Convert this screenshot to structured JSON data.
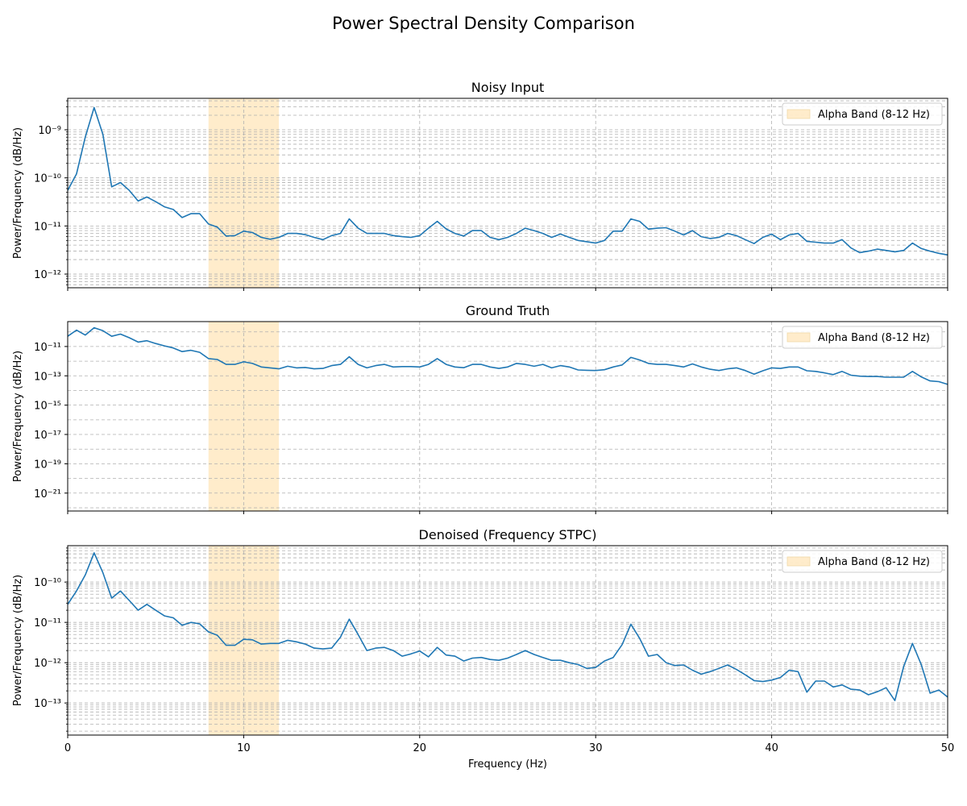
{
  "title": "Power Spectral Density Comparison",
  "colors": {
    "line": "#1f77b4",
    "band": "#ffe4b5",
    "band_alpha": 0.7,
    "grid": "#b0b0b0"
  },
  "chart_data": [
    {
      "type": "line",
      "title": "Noisy Input",
      "xlabel": "",
      "ylabel": "Power/Frequency (dB/Hz)",
      "xlim": [
        0,
        50
      ],
      "ylim": [
        5.2e-13,
        4.5e-09
      ],
      "yscale": "log",
      "xticks": [
        0,
        10,
        20,
        30,
        40,
        50
      ],
      "show_xticklabels": false,
      "yticks": [
        1e-12,
        1e-11,
        1e-10,
        1e-09
      ],
      "ytick_labels": [
        "10^-12",
        "10^-11",
        "10^-10",
        "10^-9"
      ],
      "grid": true,
      "minor_grid": true,
      "legend": {
        "label": "Alpha Band (8-12 Hz)",
        "position": "top-right"
      },
      "shaded_band": [
        8,
        12
      ],
      "series": [
        {
          "x": [
            0,
            0.5,
            1,
            1.5,
            2,
            2.5,
            3,
            3.5,
            4,
            4.5,
            5,
            5.5,
            6,
            6.5,
            7,
            7.5,
            8,
            8.5,
            9,
            9.5,
            10,
            10.5,
            11,
            11.5,
            12,
            12.5,
            13,
            13.5,
            14,
            14.5,
            15,
            15.5,
            16,
            16.5,
            17,
            17.5,
            18,
            18.5,
            19,
            19.5,
            20,
            20.5,
            21,
            21.5,
            22,
            22.5,
            23,
            23.5,
            24,
            24.5,
            25,
            25.5,
            26,
            26.5,
            27,
            27.5,
            28,
            28.5,
            29,
            29.5,
            30,
            30.5,
            31,
            31.5,
            32,
            32.5,
            33,
            33.5,
            34,
            34.5,
            35,
            35.5,
            36,
            36.5,
            37,
            37.5,
            38,
            38.5,
            39,
            39.5,
            40,
            40.5,
            41,
            41.5,
            42,
            42.5,
            43,
            43.5,
            44,
            44.5,
            45,
            45.5,
            46,
            46.5,
            47,
            47.5,
            48,
            48.5,
            49,
            49.5,
            50
          ],
          "values": [
            5.5e-11,
            1.2e-10,
            7e-10,
            2.9e-09,
            8e-10,
            6.5e-11,
            8e-11,
            5.5e-11,
            3.3e-11,
            4e-11,
            3.2e-11,
            2.5e-11,
            2.2e-11,
            1.5e-11,
            1.8e-11,
            1.8e-11,
            1.1e-11,
            9.5e-12,
            6.2e-12,
            6.3e-12,
            7.8e-12,
            7.3e-12,
            5.8e-12,
            5.3e-12,
            5.8e-12,
            7e-12,
            7e-12,
            6.6e-12,
            5.8e-12,
            5.2e-12,
            6.3e-12,
            7e-12,
            1.4e-11,
            9e-12,
            7e-12,
            7e-12,
            7e-12,
            6.3e-12,
            6e-12,
            5.8e-12,
            6.3e-12,
            9e-12,
            1.25e-11,
            8.7e-12,
            7e-12,
            6.2e-12,
            8e-12,
            8e-12,
            5.8e-12,
            5.2e-12,
            5.8e-12,
            7e-12,
            9e-12,
            8e-12,
            7e-12,
            5.8e-12,
            6.8e-12,
            5.8e-12,
            5e-12,
            4.7e-12,
            4.4e-12,
            5e-12,
            7.8e-12,
            7.8e-12,
            1.4e-11,
            1.25e-11,
            8.6e-12,
            9e-12,
            9.2e-12,
            7.8e-12,
            6.5e-12,
            8e-12,
            6e-12,
            5.5e-12,
            5.8e-12,
            7e-12,
            6.3e-12,
            5.2e-12,
            4.3e-12,
            5.8e-12,
            6.8e-12,
            5.2e-12,
            6.5e-12,
            7e-12,
            4.8e-12,
            4.6e-12,
            4.4e-12,
            4.4e-12,
            5.2e-12,
            3.5e-12,
            2.8e-12,
            3e-12,
            3.3e-12,
            3.1e-12,
            2.9e-12,
            3.1e-12,
            4.4e-12,
            3.4e-12,
            3e-12,
            2.7e-12,
            2.5e-12
          ]
        }
      ]
    },
    {
      "type": "line",
      "title": "Ground Truth",
      "xlabel": "",
      "ylabel": "Power/Frequency (dB/Hz)",
      "xlim": [
        0,
        50
      ],
      "ylim": [
        6e-23,
        5e-10
      ],
      "yscale": "log",
      "xticks": [
        0,
        10,
        20,
        30,
        40,
        50
      ],
      "show_xticklabels": false,
      "yticks": [
        1e-21,
        1e-19,
        1e-17,
        1e-15,
        1e-13,
        1e-11
      ],
      "ytick_labels": [
        "10^-21",
        "10^-19",
        "10^-17",
        "10^-15",
        "10^-13",
        "10^-11"
      ],
      "grid": true,
      "minor_grid": false,
      "legend": {
        "label": "Alpha Band (8-12 Hz)",
        "position": "top-right"
      },
      "shaded_band": [
        8,
        12
      ],
      "series": [
        {
          "x": [
            0,
            0.5,
            1,
            1.5,
            2,
            2.5,
            3,
            3.5,
            4,
            4.5,
            5,
            5.5,
            6,
            6.5,
            7,
            7.5,
            8,
            8.5,
            9,
            9.5,
            10,
            10.5,
            11,
            11.5,
            12,
            12.5,
            13,
            13.5,
            14,
            14.5,
            15,
            15.5,
            16,
            16.5,
            17,
            17.5,
            18,
            18.5,
            19,
            19.5,
            20,
            20.5,
            21,
            21.5,
            22,
            22.5,
            23,
            23.5,
            24,
            24.5,
            25,
            25.5,
            26,
            26.5,
            27,
            27.5,
            28,
            28.5,
            29,
            29.5,
            30,
            30.5,
            31,
            31.5,
            32,
            32.5,
            33,
            33.5,
            34,
            34.5,
            35,
            35.5,
            36,
            36.5,
            37,
            37.5,
            38,
            38.5,
            39,
            39.5,
            40,
            40.5,
            41,
            41.5,
            42,
            42.5,
            43,
            43.5,
            44,
            44.5,
            45,
            45.5,
            46,
            46.5,
            47,
            47.5,
            48,
            48.5,
            49,
            49.5,
            50
          ],
          "values": [
            5e-11,
            1.3e-10,
            6e-11,
            1.9e-10,
            1.2e-10,
            5e-11,
            7e-11,
            4e-11,
            2e-11,
            2.5e-11,
            1.6e-11,
            1.1e-11,
            8e-12,
            4.5e-12,
            5.5e-12,
            4e-12,
            1.5e-12,
            1.3e-12,
            6e-13,
            6e-13,
            9e-13,
            7e-13,
            4e-13,
            3.5e-13,
            3e-13,
            4.5e-13,
            3.5e-13,
            3.7e-13,
            3e-13,
            3.2e-13,
            5e-13,
            6e-13,
            2e-12,
            6e-13,
            3.5e-13,
            5e-13,
            6e-13,
            4e-13,
            4.3e-13,
            4.3e-13,
            4e-13,
            6e-13,
            1.5e-12,
            6e-13,
            4e-13,
            3.6e-13,
            6e-13,
            6e-13,
            4e-13,
            3.2e-13,
            4e-13,
            7e-13,
            6e-13,
            4.5e-13,
            6e-13,
            3.5e-13,
            5e-13,
            4e-13,
            2.5e-13,
            2.4e-13,
            2.3e-13,
            2.6e-13,
            4e-13,
            5.5e-13,
            1.8e-12,
            1.2e-12,
            7e-13,
            6e-13,
            6e-13,
            5e-13,
            4e-13,
            6.5e-13,
            4e-13,
            2.8e-13,
            2.3e-13,
            3e-13,
            3.5e-13,
            2.3e-13,
            1.3e-13,
            2.2e-13,
            3.5e-13,
            3.2e-13,
            4e-13,
            4e-13,
            2.2e-13,
            2e-13,
            1.6e-13,
            1.2e-13,
            2e-13,
            1.1e-13,
            9.5e-14,
            9e-14,
            9e-14,
            8e-14,
            8e-14,
            8e-14,
            2e-13,
            8.5e-14,
            4.5e-14,
            4e-14,
            2.6e-14
          ]
        }
      ]
    },
    {
      "type": "line",
      "title": "Denoised (Frequency STPC)",
      "xlabel": "Frequency (Hz)",
      "ylabel": "Power/Frequency (dB/Hz)",
      "xlim": [
        0,
        50
      ],
      "ylim": [
        1.6e-14,
        8e-10
      ],
      "yscale": "log",
      "xticks": [
        0,
        10,
        20,
        30,
        40,
        50
      ],
      "xtick_labels": [
        "0",
        "10",
        "20",
        "30",
        "40",
        "50"
      ],
      "show_xticklabels": true,
      "yticks": [
        1e-13,
        1e-12,
        1e-11,
        1e-10
      ],
      "ytick_labels": [
        "10^-13",
        "10^-12",
        "10^-11",
        "10^-10"
      ],
      "grid": true,
      "minor_grid": true,
      "legend": {
        "label": "Alpha Band (8-12 Hz)",
        "position": "top-right"
      },
      "shaded_band": [
        8,
        12
      ],
      "series": [
        {
          "x": [
            0,
            0.5,
            1,
            1.5,
            2,
            2.5,
            3,
            3.5,
            4,
            4.5,
            5,
            5.5,
            6,
            6.5,
            7,
            7.5,
            8,
            8.5,
            9,
            9.5,
            10,
            10.5,
            11,
            11.5,
            12,
            12.5,
            13,
            13.5,
            14,
            14.5,
            15,
            15.5,
            16,
            16.5,
            17,
            17.5,
            18,
            18.5,
            19,
            19.5,
            20,
            20.5,
            21,
            21.5,
            22,
            22.5,
            23,
            23.5,
            24,
            24.5,
            25,
            25.5,
            26,
            26.5,
            27,
            27.5,
            28,
            28.5,
            29,
            29.5,
            30,
            30.5,
            31,
            31.5,
            32,
            32.5,
            33,
            33.5,
            34,
            34.5,
            35,
            35.5,
            36,
            36.5,
            37,
            37.5,
            38,
            38.5,
            39,
            39.5,
            40,
            40.5,
            41,
            41.5,
            42,
            42.5,
            43,
            43.5,
            44,
            44.5,
            45,
            45.5,
            46,
            46.5,
            47,
            47.5,
            48,
            48.5,
            49,
            49.5,
            50
          ],
          "values": [
            2.8e-11,
            6e-11,
            1.5e-10,
            5.3e-10,
            1.7e-10,
            4e-11,
            6e-11,
            3.5e-11,
            2e-11,
            2.8e-11,
            2e-11,
            1.45e-11,
            1.3e-11,
            8.5e-12,
            1e-11,
            9.2e-12,
            5.8e-12,
            4.8e-12,
            2.7e-12,
            2.7e-12,
            3.8e-12,
            3.7e-12,
            2.9e-12,
            3e-12,
            3e-12,
            3.6e-12,
            3.3e-12,
            2.9e-12,
            2.3e-12,
            2.2e-12,
            2.3e-12,
            4.3e-12,
            1.2e-11,
            5e-12,
            2e-12,
            2.3e-12,
            2.4e-12,
            2e-12,
            1.45e-12,
            1.65e-12,
            1.95e-12,
            1.4e-12,
            2.4e-12,
            1.55e-12,
            1.45e-12,
            1.1e-12,
            1.3e-12,
            1.35e-12,
            1.2e-12,
            1.15e-12,
            1.3e-12,
            1.6e-12,
            2e-12,
            1.6e-12,
            1.35e-12,
            1.15e-12,
            1.15e-12,
            1e-12,
            9e-13,
            7.2e-13,
            7.6e-13,
            1.1e-12,
            1.35e-12,
            2.8e-12,
            9e-12,
            4e-12,
            1.45e-12,
            1.6e-12,
            1e-12,
            8.5e-13,
            8.8e-13,
            6.5e-13,
            5.2e-13,
            6e-13,
            7.2e-13,
            8.8e-13,
            6.8e-13,
            5e-13,
            3.6e-13,
            3.4e-13,
            3.7e-13,
            4.3e-13,
            6.5e-13,
            6e-13,
            1.85e-13,
            3.5e-13,
            3.5e-13,
            2.5e-13,
            2.8e-13,
            2.2e-13,
            2.1e-13,
            1.6e-13,
            1.9e-13,
            2.4e-13,
            1.15e-13,
            8e-13,
            3e-12,
            9e-13,
            1.75e-13,
            2.1e-13,
            1.4e-13
          ]
        }
      ]
    }
  ]
}
